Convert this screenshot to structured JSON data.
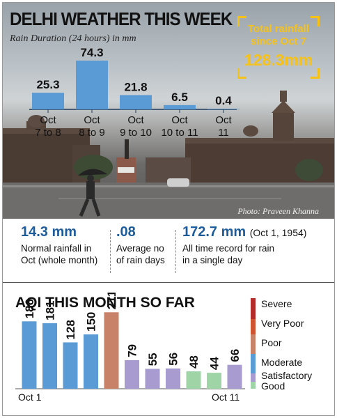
{
  "header": {
    "title": "DELHI WEATHER THIS WEEK",
    "subtitle": "Rain Duration (24 hours) in mm"
  },
  "total_rainfall": {
    "line1": "Total rainfall",
    "line2": "since Oct 7",
    "value": "128.3mm"
  },
  "photo_credit": "Photo: Praveen Khanna",
  "stats": [
    {
      "value": "14.3 mm",
      "note": "",
      "desc_line1": "Normal rainfall in",
      "desc_line2": "Oct (whole month)"
    },
    {
      "value": ".08",
      "note": "",
      "desc_line1": "Average no",
      "desc_line2": "of rain days"
    },
    {
      "value": "172.7 mm",
      "note": "(Oct 1, 1954)",
      "desc_line1": "All time record for rain",
      "desc_line2": "in a single day"
    }
  ],
  "chart_data": [
    {
      "type": "bar",
      "title": "DELHI WEATHER THIS WEEK",
      "subtitle": "Rain Duration (24 hours) in mm",
      "categories": [
        [
          "Oct",
          "7 to 8"
        ],
        [
          "Oct",
          "8 to 9"
        ],
        [
          "Oct",
          "9 to 10"
        ],
        [
          "Oct",
          "10 to 11"
        ],
        [
          "Oct",
          "11"
        ]
      ],
      "values": [
        25.3,
        74.3,
        21.8,
        6.5,
        0.4
      ],
      "value_labels": [
        "25.3",
        "74.3",
        "21.8",
        "6.5",
        "0.4"
      ],
      "bar_color": "#5b9bd5",
      "ylim": [
        0,
        80
      ]
    },
    {
      "type": "bar",
      "title": "AQI THIS MONTH SO FAR",
      "values": [
        186,
        181,
        128,
        150,
        211,
        79,
        55,
        56,
        48,
        44,
        66
      ],
      "value_labels": [
        "186",
        "181",
        "128",
        "150",
        "211",
        "79",
        "55",
        "56",
        "48",
        "44",
        "66"
      ],
      "x_labels": {
        "first": "Oct 1",
        "last": "Oct 11"
      },
      "ylim": [
        0,
        400
      ],
      "legend": [
        {
          "label": "Severe",
          "color": "#b52a2a",
          "from": 401,
          "to": 500
        },
        {
          "label": "Very Poor",
          "color": "#d0532f",
          "from": 301,
          "to": 400
        },
        {
          "label": "Poor",
          "color": "#c8826a",
          "from": 201,
          "to": 300
        },
        {
          "label": "Moderate",
          "color": "#5b9bd5",
          "from": 101,
          "to": 200
        },
        {
          "label": "Satisfactory",
          "color": "#a79bcf",
          "from": 51,
          "to": 100
        },
        {
          "label": "Good",
          "color": "#9fd4a6",
          "from": 0,
          "to": 50
        }
      ]
    }
  ]
}
